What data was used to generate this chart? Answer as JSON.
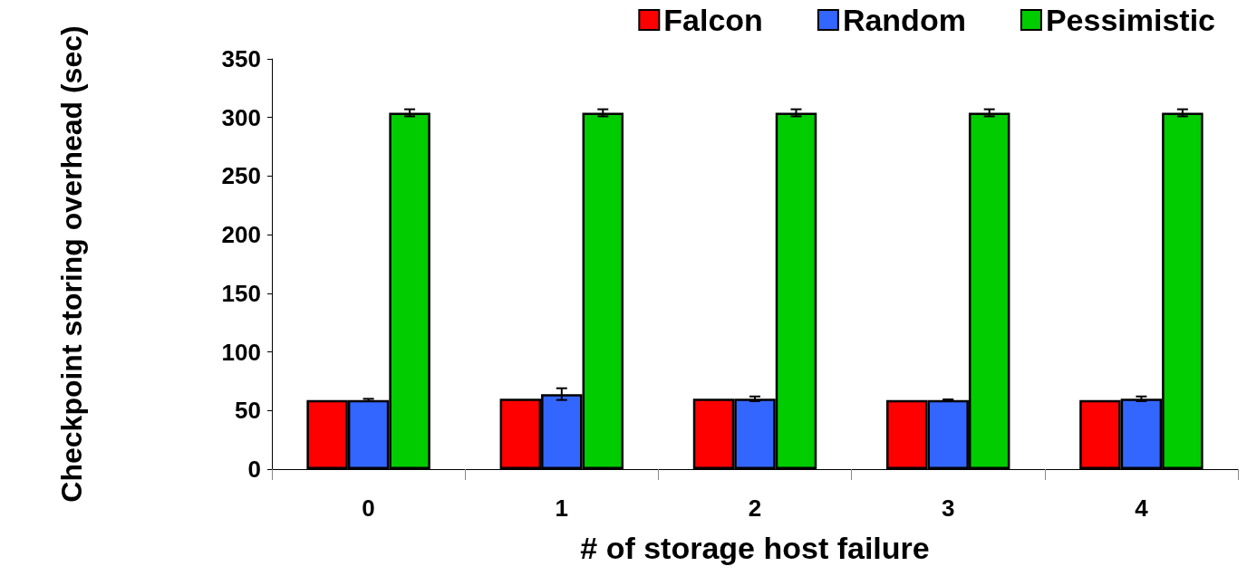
{
  "chart_data": {
    "type": "bar",
    "xlabel": "# of storage host failure",
    "ylabel": "Checkpoint storing overhead (sec)",
    "categories": [
      "0",
      "1",
      "2",
      "3",
      "4"
    ],
    "series": [
      {
        "name": "Falcon",
        "color": "#ff0000",
        "values": [
          59,
          60,
          60,
          59,
          59
        ]
      },
      {
        "name": "Random",
        "color": "#3366ff",
        "values": [
          59,
          64,
          60,
          59,
          60
        ],
        "errors": [
          1,
          5,
          2,
          0.5,
          2
        ]
      },
      {
        "name": "Pessimistic",
        "color": "#00cc00",
        "values": [
          304,
          304,
          304,
          304,
          304
        ],
        "errors": [
          3,
          3,
          3,
          3,
          3
        ]
      }
    ],
    "ylim": [
      0,
      350
    ],
    "yticks": [
      0,
      50,
      100,
      150,
      200,
      250,
      300,
      350
    ],
    "grid": false,
    "legend": "top right"
  }
}
